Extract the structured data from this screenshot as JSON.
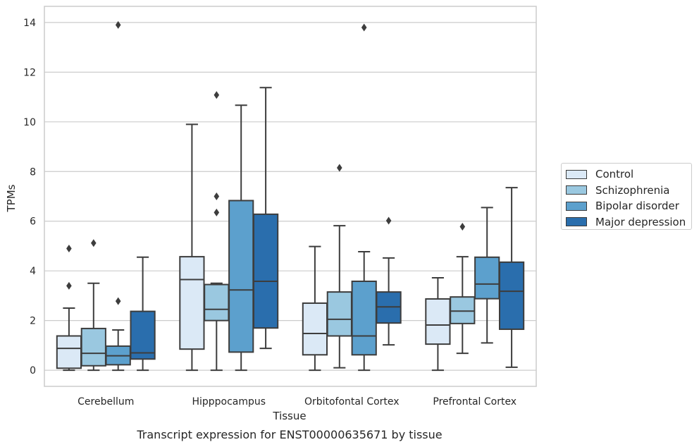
{
  "chart_data": {
    "type": "box",
    "title": "Transcript expression for ENST00000635671 by tissue",
    "xlabel": "Tissue",
    "ylabel": "TPMs",
    "ylim": [
      -0.65,
      14.65
    ],
    "yticks": [
      0,
      2,
      4,
      6,
      8,
      10,
      12,
      14
    ],
    "grid": "horizontal",
    "legend_position": "right",
    "categories": [
      "Cerebellum",
      "Hipppocampus",
      "Orbitofontal Cortex",
      "Prefrontal Cortex"
    ],
    "series": [
      {
        "name": "Control",
        "color": "#dbe9f6",
        "boxes": [
          {
            "whisker_low": 0.0,
            "q1": 0.08,
            "median": 0.88,
            "q3": 1.38,
            "whisker_high": 2.5,
            "outliers": [
              3.4,
              4.9
            ]
          },
          {
            "whisker_low": 0.0,
            "q1": 0.85,
            "median": 3.65,
            "q3": 4.57,
            "whisker_high": 9.9,
            "outliers": []
          },
          {
            "whisker_low": 0.0,
            "q1": 0.62,
            "median": 1.48,
            "q3": 2.7,
            "whisker_high": 4.98,
            "outliers": []
          },
          {
            "whisker_low": 0.0,
            "q1": 1.05,
            "median": 1.82,
            "q3": 2.87,
            "whisker_high": 3.72,
            "outliers": []
          }
        ]
      },
      {
        "name": "Schizophrenia",
        "color": "#9ac8e0",
        "boxes": [
          {
            "whisker_low": 0.0,
            "q1": 0.18,
            "median": 0.68,
            "q3": 1.68,
            "whisker_high": 3.5,
            "outliers": [
              5.12
            ]
          },
          {
            "whisker_low": 0.0,
            "q1": 2.0,
            "median": 2.45,
            "q3": 3.45,
            "whisker_high": 3.5,
            "outliers": [
              6.35,
              7.0,
              11.08
            ]
          },
          {
            "whisker_low": 0.1,
            "q1": 1.38,
            "median": 2.05,
            "q3": 3.15,
            "whisker_high": 5.82,
            "outliers": [
              8.15
            ]
          },
          {
            "whisker_low": 0.68,
            "q1": 1.88,
            "median": 2.38,
            "q3": 2.95,
            "whisker_high": 4.57,
            "outliers": [
              5.78
            ]
          }
        ]
      },
      {
        "name": "Bipolar disorder",
        "color": "#5ca0cd",
        "boxes": [
          {
            "whisker_low": 0.0,
            "q1": 0.22,
            "median": 0.58,
            "q3": 0.97,
            "whisker_high": 1.62,
            "outliers": [
              2.78,
              13.9
            ]
          },
          {
            "whisker_low": 0.0,
            "q1": 0.73,
            "median": 3.23,
            "q3": 6.83,
            "whisker_high": 10.67,
            "outliers": []
          },
          {
            "whisker_low": 0.0,
            "q1": 0.62,
            "median": 1.38,
            "q3": 3.58,
            "whisker_high": 4.77,
            "outliers": [
              13.8
            ]
          },
          {
            "whisker_low": 1.1,
            "q1": 2.88,
            "median": 3.47,
            "q3": 4.55,
            "whisker_high": 6.55,
            "outliers": []
          }
        ]
      },
      {
        "name": "Major depression",
        "color": "#2a6ead",
        "boxes": [
          {
            "whisker_low": 0.0,
            "q1": 0.45,
            "median": 0.7,
            "q3": 2.37,
            "whisker_high": 4.55,
            "outliers": []
          },
          {
            "whisker_low": 0.88,
            "q1": 1.7,
            "median": 3.58,
            "q3": 6.28,
            "whisker_high": 11.38,
            "outliers": []
          },
          {
            "whisker_low": 1.02,
            "q1": 1.9,
            "median": 2.55,
            "q3": 3.15,
            "whisker_high": 4.52,
            "outliers": [
              6.02
            ]
          },
          {
            "whisker_low": 0.12,
            "q1": 1.65,
            "median": 3.18,
            "q3": 4.35,
            "whisker_high": 7.35,
            "outliers": []
          }
        ]
      }
    ]
  }
}
